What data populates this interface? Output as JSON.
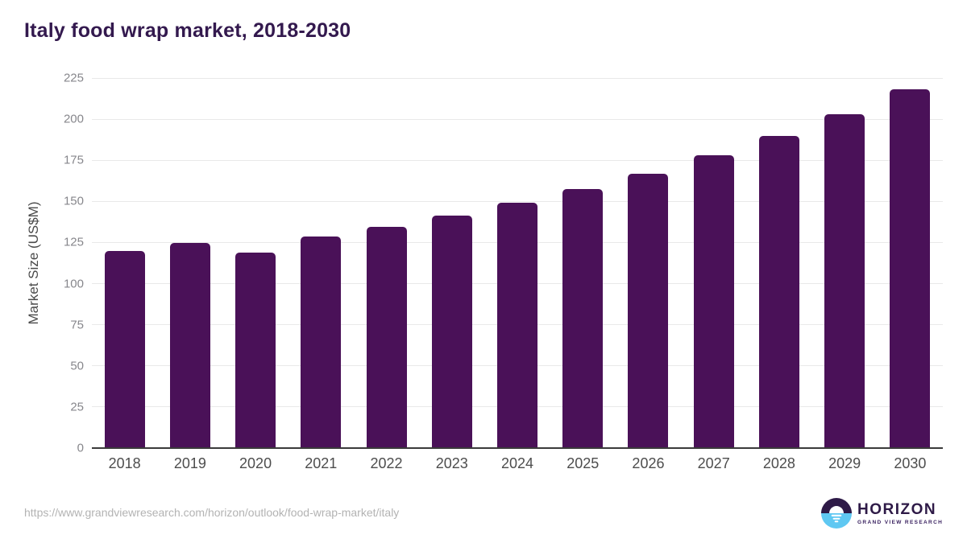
{
  "title": "Italy food wrap market, 2018-2030",
  "footer": {
    "source_url": "https://www.grandviewresearch.com/horizon/outlook/food-wrap-market/italy",
    "logo": {
      "name": "HORIZON",
      "subtitle": "GRAND VIEW RESEARCH"
    }
  },
  "icons": {
    "logo_icon": "horizon-sun-circle-icon"
  },
  "colors": {
    "bar": "#4A1158",
    "title": "#33194E",
    "gridline": "#E9E9E9",
    "axis_line": "#3B3B3B",
    "y_tick_text": "#87878C",
    "x_tick_text": "#4D4D4D",
    "axis_title_text": "#4A4A4A",
    "url_text": "#B3B3B3",
    "logo_purple": "#2E1A47",
    "logo_blue": "#5FC8F2",
    "background": "#FFFFFF"
  },
  "chart_data": {
    "type": "bar",
    "title": "Italy food wrap market, 2018-2030",
    "categories": [
      "2018",
      "2019",
      "2020",
      "2021",
      "2022",
      "2023",
      "2024",
      "2025",
      "2026",
      "2027",
      "2028",
      "2029",
      "2030"
    ],
    "values": [
      119.9,
      124.7,
      118.9,
      128.7,
      134.5,
      141.2,
      149.2,
      157.5,
      166.9,
      177.9,
      189.6,
      203.0,
      218.4
    ],
    "xlabel": "",
    "ylabel": "Market Size (US$M)",
    "ylim": [
      0,
      225
    ],
    "ytick_step": 25,
    "yticks": [
      0,
      25,
      50,
      75,
      100,
      125,
      150,
      175,
      200,
      225
    ],
    "grid": true,
    "legend": false,
    "bar_color": "#4A1158"
  }
}
